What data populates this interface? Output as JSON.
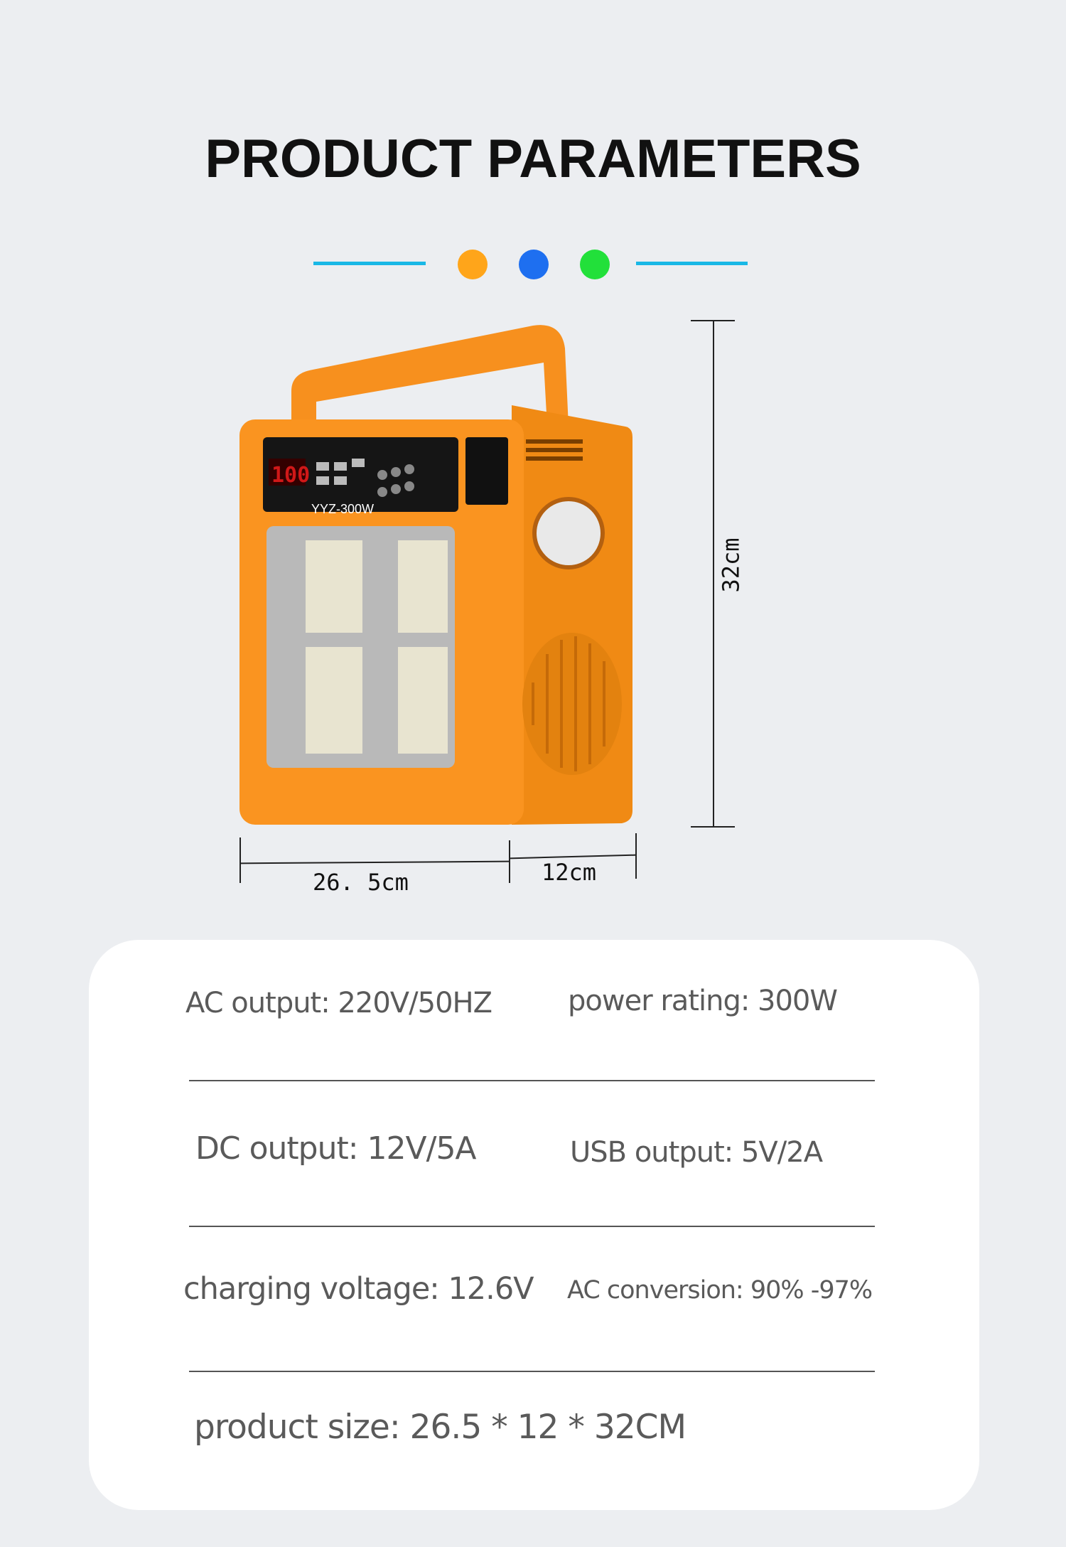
{
  "title": "PRODUCT PARAMETERS",
  "accent_colors": {
    "line": "#19b8e6",
    "dot1": "#ffa51a",
    "dot2": "#1e6ff0",
    "dot3": "#22e03a"
  },
  "product": {
    "model": "YYZ-300W",
    "display": "100",
    "body_color": "#f7901e",
    "dimensions": {
      "height": "32cm",
      "width": "26. 5cm",
      "depth": "12cm"
    }
  },
  "specs": [
    {
      "left": "AC output: 220V/50HZ",
      "right": "power rating: 300W"
    },
    {
      "left": "DC output: 12V/5A",
      "right": "USB output: 5V/2A"
    },
    {
      "left": "charging voltage: 12.6V",
      "right": "AC conversion: 90% -97%"
    },
    {
      "left": "product size: 26.5 * 12 * 32CM"
    }
  ]
}
